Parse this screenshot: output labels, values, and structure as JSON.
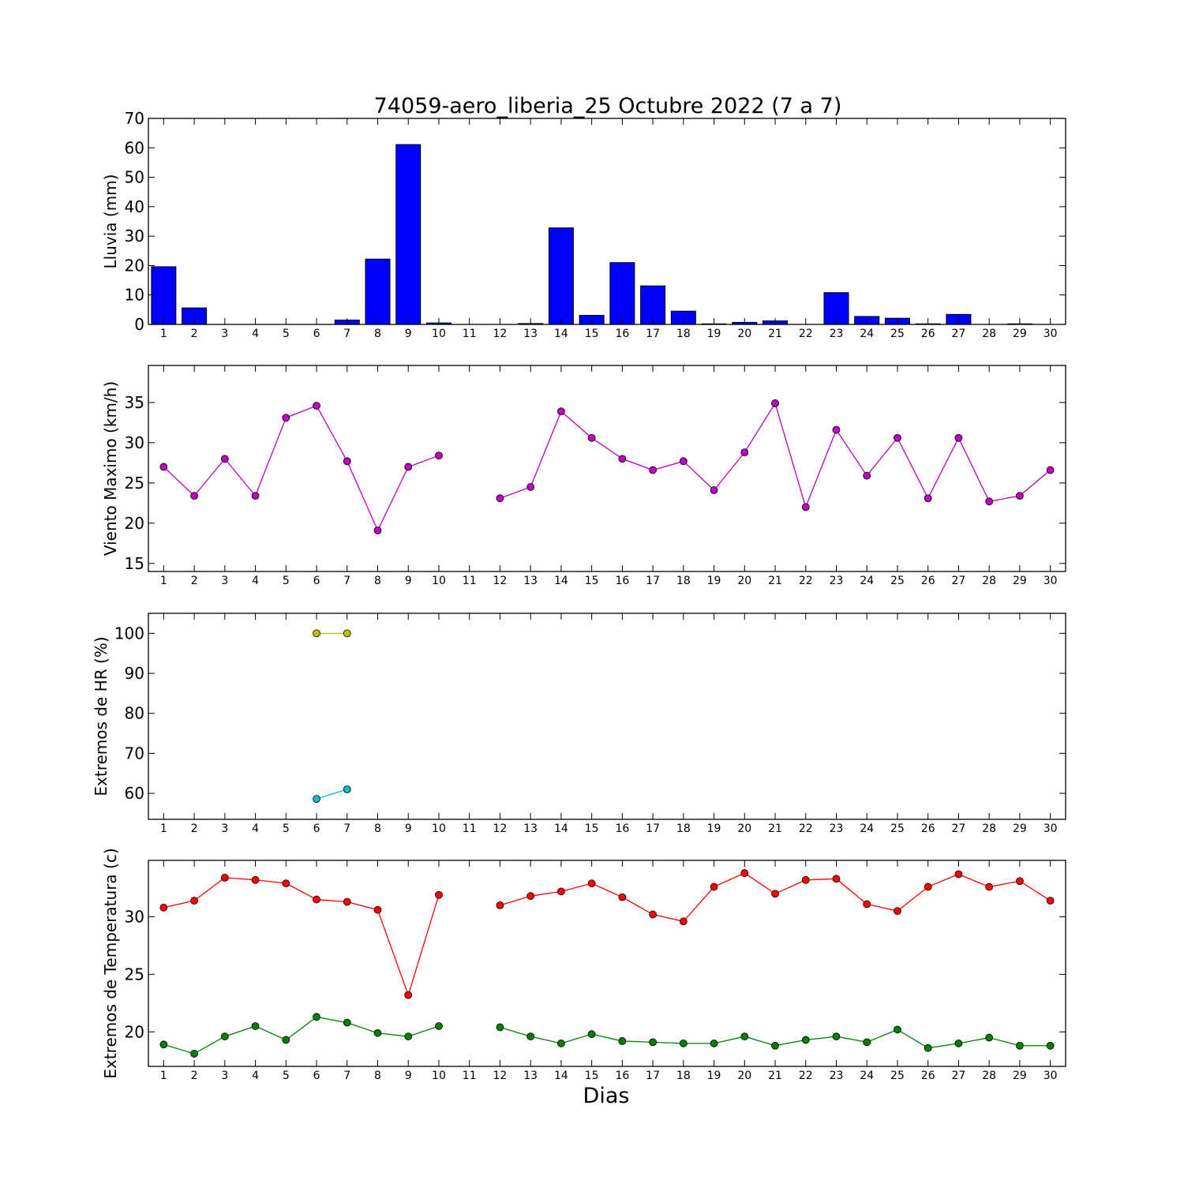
{
  "title": "74059-aero_liberia_25 Octubre 2022  (7 a 7)",
  "xlabel": "Dias",
  "x_ticks": [
    "1",
    "2",
    "3",
    "4",
    "5",
    "6",
    "7",
    "8",
    "9",
    "10",
    "11",
    "12",
    "13",
    "14",
    "15",
    "16",
    "17",
    "18",
    "19",
    "20",
    "21",
    "22",
    "23",
    "24",
    "25",
    "26",
    "27",
    "28",
    "29",
    "30"
  ],
  "chart_data": [
    {
      "type": "bar",
      "ylabel": "Lluvia (mm)",
      "ylim": [
        0,
        70
      ],
      "yticks": [
        0,
        10,
        20,
        30,
        40,
        50,
        60,
        70
      ],
      "categories": [
        1,
        2,
        3,
        4,
        5,
        6,
        7,
        8,
        9,
        10,
        11,
        12,
        13,
        14,
        15,
        16,
        17,
        18,
        19,
        20,
        21,
        22,
        23,
        24,
        25,
        26,
        27,
        28,
        29,
        30
      ],
      "series": [
        {
          "color": "#0000ff",
          "values": [
            19.6,
            5.6,
            0,
            0,
            0,
            0,
            1.5,
            22.2,
            61.1,
            0.5,
            0,
            0,
            0.3,
            32.8,
            3.1,
            21,
            13.1,
            4.5,
            0.2,
            0.7,
            1.2,
            0,
            10.8,
            2.7,
            2.1,
            0.2,
            3.4,
            0,
            0.2,
            0
          ]
        }
      ],
      "grid": false
    },
    {
      "type": "line",
      "ylabel": "Viento Maximo (km/h)",
      "ylim": [
        14,
        39.6
      ],
      "yticks": [
        15,
        20,
        25,
        30,
        35
      ],
      "x": [
        1,
        2,
        3,
        4,
        5,
        6,
        7,
        8,
        9,
        10,
        11,
        12,
        13,
        14,
        15,
        16,
        17,
        18,
        19,
        20,
        21,
        22,
        23,
        24,
        25,
        26,
        27,
        28,
        29,
        30
      ],
      "series": [
        {
          "color": "#bf00bf",
          "values": [
            27.0,
            23.4,
            28.0,
            23.4,
            33.1,
            34.6,
            27.7,
            19.1,
            27.0,
            28.4,
            null,
            23.1,
            24.5,
            33.9,
            30.6,
            28.0,
            26.6,
            27.7,
            24.1,
            28.8,
            34.9,
            22.0,
            31.6,
            25.9,
            30.6,
            23.1,
            30.6,
            22.7,
            23.4,
            26.6
          ]
        }
      ],
      "grid": false
    },
    {
      "type": "line",
      "ylabel": "Extremos de HR (%)",
      "ylim": [
        53.5,
        105
      ],
      "yticks": [
        60,
        70,
        80,
        90,
        100
      ],
      "x": [
        1,
        2,
        3,
        4,
        5,
        6,
        7,
        8,
        9,
        10,
        11,
        12,
        13,
        14,
        15,
        16,
        17,
        18,
        19,
        20,
        21,
        22,
        23,
        24,
        25,
        26,
        27,
        28,
        29,
        30
      ],
      "series": [
        {
          "color": "#bfbf00",
          "values": [
            null,
            null,
            null,
            null,
            null,
            100,
            100,
            null,
            null,
            null,
            null,
            null,
            null,
            null,
            null,
            null,
            null,
            null,
            null,
            null,
            null,
            null,
            null,
            null,
            null,
            null,
            null,
            null,
            null,
            null
          ]
        },
        {
          "color": "#00bfbf",
          "values": [
            null,
            null,
            null,
            null,
            null,
            58.6,
            61.0,
            null,
            null,
            null,
            null,
            null,
            null,
            null,
            null,
            null,
            null,
            null,
            null,
            null,
            null,
            null,
            null,
            null,
            null,
            null,
            null,
            null,
            null,
            null
          ]
        }
      ],
      "grid": false
    },
    {
      "type": "line",
      "ylabel": "Extremos de Temperatura (c)",
      "ylim": [
        17,
        34.9
      ],
      "yticks": [
        20,
        25,
        30
      ],
      "x": [
        1,
        2,
        3,
        4,
        5,
        6,
        7,
        8,
        9,
        10,
        11,
        12,
        13,
        14,
        15,
        16,
        17,
        18,
        19,
        20,
        21,
        22,
        23,
        24,
        25,
        26,
        27,
        28,
        29,
        30
      ],
      "series": [
        {
          "color": "#ff0000",
          "values": [
            30.8,
            31.4,
            33.4,
            33.2,
            32.9,
            31.5,
            31.3,
            30.6,
            23.2,
            31.9,
            null,
            31.0,
            31.8,
            32.2,
            32.9,
            31.7,
            30.2,
            29.6,
            32.6,
            33.8,
            32.0,
            33.2,
            33.3,
            31.1,
            30.5,
            32.6,
            33.7,
            32.6,
            33.1,
            31.4
          ]
        },
        {
          "color": "#008000",
          "values": [
            18.9,
            18.1,
            19.6,
            20.5,
            19.3,
            21.3,
            20.8,
            19.9,
            19.6,
            20.5,
            null,
            20.4,
            19.6,
            19.0,
            19.8,
            19.2,
            19.1,
            19.0,
            19.0,
            19.6,
            18.8,
            19.3,
            19.6,
            19.1,
            20.2,
            18.6,
            19.0,
            19.5,
            18.8,
            18.8
          ]
        }
      ],
      "grid": false
    }
  ]
}
